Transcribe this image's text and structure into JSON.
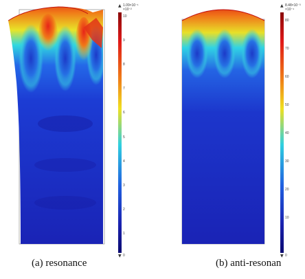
{
  "panels": [
    {
      "id": "a",
      "caption": "(a) resonance",
      "colorbar": {
        "max_label": "1.09×10⁻¹",
        "scale_label": "×10⁻²",
        "ticks": [
          "10",
          "9",
          "8",
          "7",
          "6",
          "5",
          "4",
          "3",
          "2",
          "1"
        ],
        "min_label": "0",
        "max_marker": "▲",
        "min_marker": "▼"
      }
    },
    {
      "id": "b",
      "caption": "(b) anti-resonan",
      "colorbar": {
        "max_label": "8.48×10⁻³",
        "scale_label": "×10⁻⁴",
        "ticks": [
          "80",
          "70",
          "60",
          "50",
          "40",
          "30",
          "20",
          "10"
        ],
        "min_label": "0",
        "max_marker": "▲",
        "min_marker": "▼"
      }
    }
  ],
  "colors": {
    "deep_blue": "#1a1fb0",
    "blue": "#1f4fe0",
    "cyan": "#20d0e8",
    "yellow": "#f0e020",
    "orange": "#f08018",
    "red": "#d81818"
  }
}
